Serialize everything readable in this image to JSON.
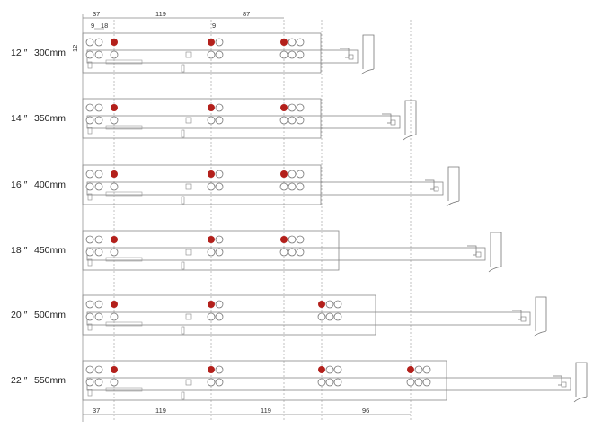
{
  "rows": [
    {
      "inch": "12 ″",
      "mm": "300mm"
    },
    {
      "inch": "14 ″",
      "mm": "350mm"
    },
    {
      "inch": "16 ″",
      "mm": "400mm"
    },
    {
      "inch": "18 ″",
      "mm": "450mm"
    },
    {
      "inch": "20 ″",
      "mm": "500mm"
    },
    {
      "inch": "22 ″",
      "mm": "550mm"
    }
  ],
  "top_dimensions": {
    "a": "37",
    "b": "119",
    "c": "87",
    "d": "9",
    "e": "18",
    "f": "9",
    "side": "12"
  },
  "bottom_dimensions": {
    "a": "37",
    "b": "119",
    "c": "119",
    "d": "96"
  },
  "colors": {
    "mounting_hole": "#b3201b",
    "line": "#777777"
  }
}
